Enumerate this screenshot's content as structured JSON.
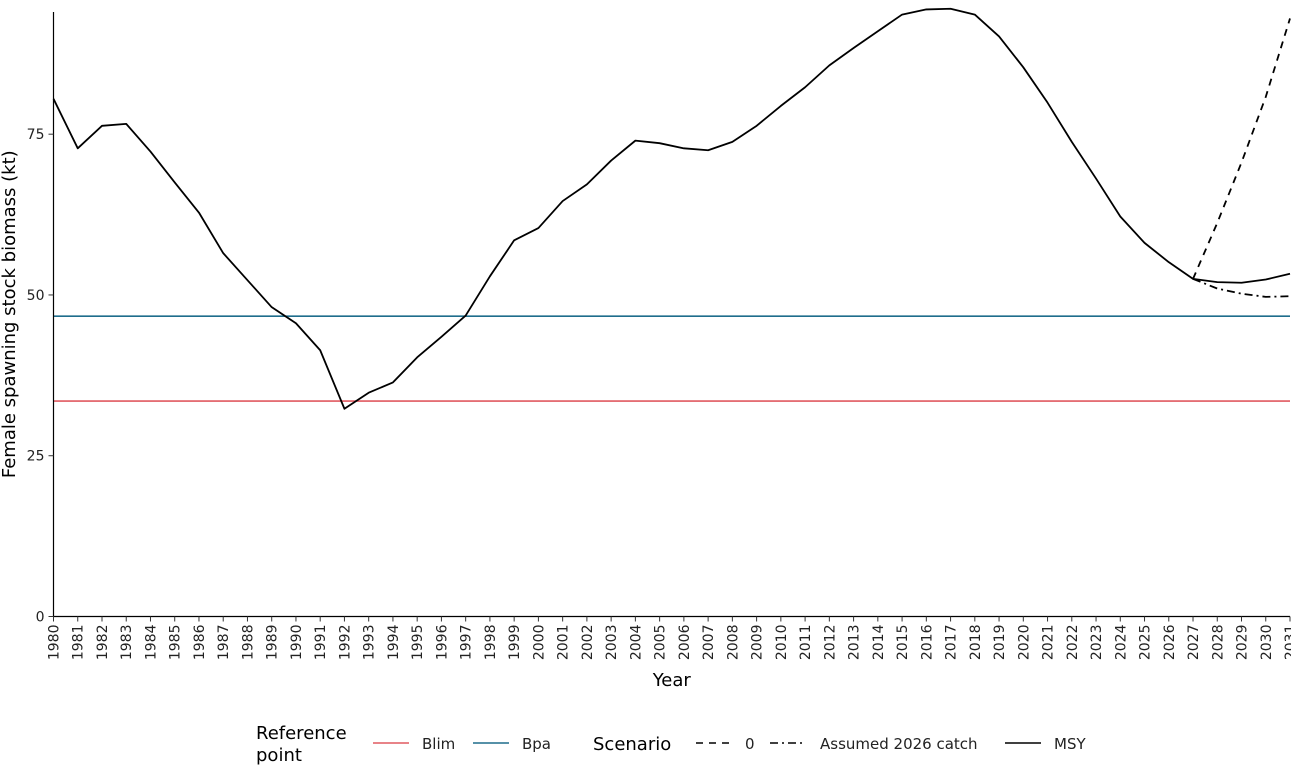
{
  "chart_data": {
    "type": "line",
    "title": "",
    "xlabel": "Year",
    "ylabel": "Female spawning stock biomass (kt)",
    "xlim": [
      1980,
      2031
    ],
    "ylim": [
      0,
      94
    ],
    "y_ticks": [
      0,
      25,
      50,
      75
    ],
    "x_ticks": [
      "1980",
      "1981",
      "1982",
      "1983",
      "1984",
      "1985",
      "1986",
      "1987",
      "1988",
      "1989",
      "1990",
      "1991",
      "1992",
      "1993",
      "1994",
      "1995",
      "1996",
      "1997",
      "1998",
      "1999",
      "2000",
      "2001",
      "2002",
      "2003",
      "2004",
      "2005",
      "2006",
      "2007",
      "2008",
      "2009",
      "2010",
      "2011",
      "2012",
      "2013",
      "2014",
      "2015",
      "2016",
      "2017",
      "2018",
      "2019",
      "2020",
      "2021",
      "2022",
      "2023",
      "2024",
      "2025",
      "2026",
      "2027",
      "2028",
      "2029",
      "2030",
      "2031"
    ],
    "grid": false,
    "legend_position": "bottom",
    "reference_lines": [
      {
        "name": "Blim",
        "value": 33.5,
        "color": "#e15a60"
      },
      {
        "name": "Bpa",
        "value": 46.7,
        "color": "#1f6d8c"
      }
    ],
    "series": [
      {
        "name": "MSY",
        "line_style": "solid",
        "color": "#000000",
        "x": [
          1980,
          1981,
          1982,
          1983,
          1984,
          1985,
          1986,
          1987,
          1988,
          1989,
          1990,
          1991,
          1992,
          1993,
          1994,
          1995,
          1996,
          1997,
          1998,
          1999,
          2000,
          2001,
          2002,
          2003,
          2004,
          2005,
          2006,
          2007,
          2008,
          2009,
          2010,
          2011,
          2012,
          2013,
          2014,
          2015,
          2016,
          2017,
          2018,
          2019,
          2020,
          2021,
          2022,
          2023,
          2024,
          2025,
          2026,
          2027,
          2028,
          2029,
          2030,
          2031
        ],
        "y": [
          80.5,
          72.8,
          76.3,
          76.6,
          72.3,
          67.5,
          62.8,
          56.5,
          52.3,
          48.1,
          45.6,
          41.4,
          32.3,
          34.8,
          36.4,
          40.3,
          43.5,
          46.8,
          52.9,
          58.5,
          60.4,
          64.6,
          67.2,
          70.9,
          74.0,
          73.6,
          72.8,
          72.5,
          73.8,
          76.3,
          79.4,
          82.3,
          85.7,
          88.4,
          91.0,
          93.6,
          94.4,
          94.5,
          93.6,
          90.2,
          85.4,
          79.9,
          73.8,
          68.1,
          62.2,
          58.1,
          55.1,
          52.5,
          52.0,
          51.9,
          52.4,
          53.3
        ]
      },
      {
        "name": "0",
        "line_style": "dashed",
        "color": "#000000",
        "x": [
          2027,
          2028,
          2029,
          2030,
          2031
        ],
        "y": [
          52.5,
          61.2,
          70.6,
          80.8,
          93.0
        ]
      },
      {
        "name": "Assumed 2026 catch",
        "line_style": "dashdot",
        "color": "#000000",
        "x": [
          2027,
          2028,
          2029,
          2030,
          2031
        ],
        "y": [
          52.5,
          51.0,
          50.2,
          49.7,
          49.8
        ]
      }
    ],
    "legend": {
      "reference_title": "Reference point",
      "reference_title_lines": [
        "Reference",
        "point"
      ],
      "reference_items": [
        {
          "label": "Blim",
          "color": "#e15a60"
        },
        {
          "label": "Bpa",
          "color": "#1f6d8c"
        }
      ],
      "scenario_title": "Scenario",
      "scenario_items": [
        {
          "label": "0",
          "line_style": "dashed"
        },
        {
          "label": "Assumed 2026 catch",
          "line_style": "dashdot"
        },
        {
          "label": "MSY",
          "line_style": "solid"
        }
      ]
    }
  }
}
